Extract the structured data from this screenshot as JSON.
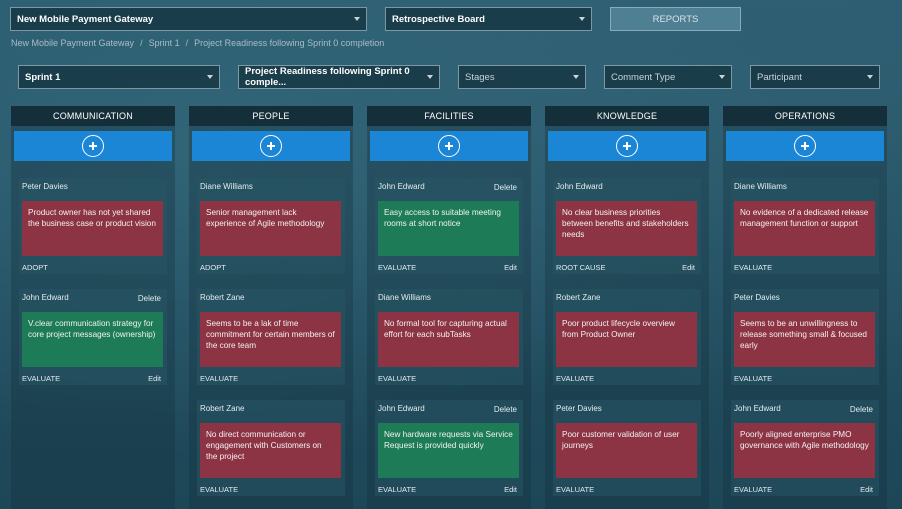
{
  "topbar": {
    "project_select": "New Mobile Payment Gateway",
    "board_select": "Retrospective Board",
    "reports_label": "REPORTS"
  },
  "breadcrumb": {
    "items": [
      "New Mobile Payment Gateway",
      "Sprint 1",
      "Project Readiness following Sprint 0 completion"
    ],
    "separator": "/"
  },
  "filters": {
    "sprint": "Sprint 1",
    "retro": "Project Readiness following Sprint 0 comple...",
    "stages_placeholder": "Stages",
    "comment_type_placeholder": "Comment Type",
    "participant_placeholder": "Participant"
  },
  "labels": {
    "delete": "Delete",
    "edit": "Edit"
  },
  "columns": [
    {
      "title": "COMMUNICATION",
      "cards": [
        {
          "author": "Peter Davies",
          "text": "Product owner has not yet shared the business case or product vision",
          "stage": "ADOPT",
          "color": "red",
          "delete": false,
          "edit": false
        },
        {
          "author": "John Edward",
          "text": "V.clear communication strategy for core project messages (ownership)",
          "stage": "EVALUATE",
          "color": "green",
          "delete": true,
          "edit": true
        }
      ]
    },
    {
      "title": "PEOPLE",
      "cards": [
        {
          "author": "Diane Williams",
          "text": "Senior management lack experience of Agile methodology",
          "stage": "ADOPT",
          "color": "red",
          "delete": false,
          "edit": false
        },
        {
          "author": "Robert Zane",
          "text": "Seems to be a lak of time commitment for certain members of the core team",
          "stage": "EVALUATE",
          "color": "red",
          "delete": false,
          "edit": false
        },
        {
          "author": "Robert Zane",
          "text": "No direct communication or engagement with Customers on the project",
          "stage": "EVALUATE",
          "color": "red",
          "delete": false,
          "edit": false
        }
      ]
    },
    {
      "title": "FACILITIES",
      "cards": [
        {
          "author": "John Edward",
          "text": "Easy access to suitable meeting rooms at short notice",
          "stage": "EVALUATE",
          "color": "green",
          "delete": true,
          "edit": true
        },
        {
          "author": "Diane Williams",
          "text": "No formal tool for capturing actual effort for each subTasks",
          "stage": "EVALUATE",
          "color": "red",
          "delete": false,
          "edit": false
        },
        {
          "author": "John Edward",
          "text": "New hardware requests via Service Request is provided quickly",
          "stage": "EVALUATE",
          "color": "green",
          "delete": true,
          "edit": true
        }
      ]
    },
    {
      "title": "KNOWLEDGE",
      "cards": [
        {
          "author": "John Edward",
          "text": "No clear business priorities between benefits and stakeholders needs",
          "stage": "ROOT CAUSE",
          "color": "red",
          "delete": false,
          "edit": true
        },
        {
          "author": "Robert Zane",
          "text": "Poor product lifecycle overview from Product Owner",
          "stage": "EVALUATE",
          "color": "red",
          "delete": false,
          "edit": false
        },
        {
          "author": "Peter Davies",
          "text": "Poor customer validation of user journeys",
          "stage": "EVALUATE",
          "color": "red",
          "delete": false,
          "edit": false
        }
      ]
    },
    {
      "title": "OPERATIONS",
      "cards": [
        {
          "author": "Diane Williams",
          "text": "No evidence of a dedicated release management function or support",
          "stage": "EVALUATE",
          "color": "red",
          "delete": false,
          "edit": false
        },
        {
          "author": "Peter Davies",
          "text": "Seems to be an unwillingness to release something small & focused early",
          "stage": "EVALUATE",
          "color": "red",
          "delete": false,
          "edit": false
        },
        {
          "author": "John Edward",
          "text": "Poorly aligned enterprise PMO governance with Agile methodology",
          "stage": "EVALUATE",
          "color": "red",
          "delete": true,
          "edit": true
        }
      ]
    }
  ]
}
